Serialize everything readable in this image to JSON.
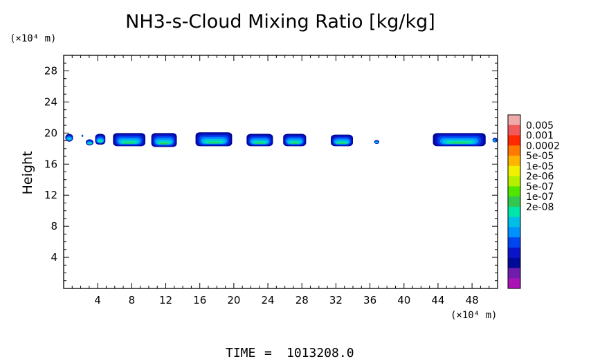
{
  "chart_data": {
    "type": "heatmap",
    "title": "NH3-s-Cloud Mixing Ratio [kg/kg]",
    "ylabel": "Height",
    "x_unit": "(×10⁴ m)",
    "y_unit": "(×10⁴ m)",
    "xlim": [
      0,
      51
    ],
    "ylim": [
      0,
      30
    ],
    "x_ticks": [
      4,
      8,
      12,
      16,
      20,
      24,
      28,
      32,
      36,
      40,
      44,
      48
    ],
    "y_ticks": [
      4,
      8,
      12,
      16,
      20,
      24,
      28
    ],
    "x_tick_labels": [
      "4",
      "8",
      "12",
      "16",
      "20",
      "24",
      "28",
      "32",
      "36",
      "40",
      "44",
      "48"
    ],
    "y_tick_labels": [
      "4",
      "8",
      "12",
      "16",
      "20",
      "24",
      "28"
    ],
    "colorbar": {
      "labels": [
        "0.005",
        "0.001",
        "0.0002",
        "5e-05",
        "1e-05",
        "2e-06",
        "5e-07",
        "1e-07",
        "2e-08"
      ],
      "colors": [
        "#f0aaaa",
        "#f05a5a",
        "#ff2800",
        "#ff7800",
        "#ffb400",
        "#f0f000",
        "#b4f000",
        "#50e600",
        "#32c850",
        "#00e6aa",
        "#00bee6",
        "#0091ff",
        "#0046f0",
        "#0a14c8",
        "#000a96",
        "#6e1eaa",
        "#aa14b4"
      ]
    },
    "clouds": [
      {
        "x0": 0.2,
        "x1": 1.1,
        "ybot": 18.9,
        "ytop": 19.9,
        "core": 0.0
      },
      {
        "x0": 2.1,
        "x1": 2.3,
        "ybot": 19.5,
        "ytop": 19.8,
        "core": 0.0
      },
      {
        "x0": 2.6,
        "x1": 3.5,
        "ybot": 18.4,
        "ytop": 19.2,
        "core": 0.1
      },
      {
        "x0": 3.7,
        "x1": 4.9,
        "ybot": 18.5,
        "ytop": 19.9,
        "core": 0.2
      },
      {
        "x0": 5.8,
        "x1": 9.6,
        "ybot": 18.3,
        "ytop": 20.0,
        "core": 0.6
      },
      {
        "x0": 10.3,
        "x1": 13.3,
        "ybot": 18.2,
        "ytop": 20.0,
        "core": 0.7
      },
      {
        "x0": 15.5,
        "x1": 19.8,
        "ybot": 18.3,
        "ytop": 20.1,
        "core": 0.6
      },
      {
        "x0": 21.5,
        "x1": 24.6,
        "ybot": 18.3,
        "ytop": 19.9,
        "core": 0.5
      },
      {
        "x0": 25.8,
        "x1": 28.5,
        "ybot": 18.3,
        "ytop": 19.9,
        "core": 0.5
      },
      {
        "x0": 31.4,
        "x1": 34.0,
        "ybot": 18.3,
        "ytop": 19.8,
        "core": 0.4
      },
      {
        "x0": 36.5,
        "x1": 37.1,
        "ybot": 18.6,
        "ytop": 19.1,
        "core": 0.0
      },
      {
        "x0": 43.4,
        "x1": 49.6,
        "ybot": 18.3,
        "ytop": 20.0,
        "core": 0.8
      },
      {
        "x0": 50.4,
        "x1": 51.0,
        "ybot": 18.8,
        "ytop": 19.4,
        "core": 0.0
      }
    ]
  },
  "footer": {
    "time_label": "TIME",
    "time_sep": "=",
    "time_value": "1013208.0"
  }
}
